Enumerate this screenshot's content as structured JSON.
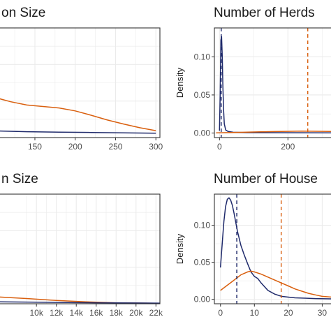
{
  "colors": {
    "series_blue": "#1f2a6b",
    "series_orange": "#d95f0e",
    "grid": "#ebebeb",
    "panel_border": "#333333",
    "axis_text": "#4d4d4d"
  },
  "chart_data": [
    {
      "type": "line",
      "title": "on Size",
      "xlabel": "",
      "ylabel": "",
      "xlim": [
        105,
        305
      ],
      "ylim": [
        0,
        0.03
      ],
      "x_ticks": [
        150,
        200,
        250,
        300
      ],
      "x_tick_labels": [
        "150",
        "200",
        "250",
        "300"
      ],
      "y_ticks": [],
      "y_tick_labels": [],
      "grid": true,
      "series": [
        {
          "x": [
            105,
            120,
            140,
            160,
            180,
            200,
            220,
            240,
            260,
            280,
            300
          ],
          "y": [
            0.0107,
            0.0098,
            0.0089,
            0.0085,
            0.0081,
            0.0073,
            0.0061,
            0.0048,
            0.0037,
            0.0027,
            0.0019
          ],
          "color": "#d95f0e"
        },
        {
          "x": [
            105,
            140,
            180,
            220,
            260,
            300
          ],
          "y": [
            0.0018,
            0.0016,
            0.0015,
            0.0014,
            0.0013,
            0.0012
          ],
          "color": "#1f2a6b"
        }
      ],
      "vlines": []
    },
    {
      "type": "line",
      "title": "Number of Herds",
      "xlabel": "",
      "ylabel": "Density",
      "xlim": [
        -15,
        330
      ],
      "ylim": [
        -0.006,
        0.138
      ],
      "x_ticks": [
        0,
        200
      ],
      "x_tick_labels": [
        "0",
        "200"
      ],
      "y_ticks": [
        0,
        0.05,
        0.1
      ],
      "y_tick_labels": [
        "0.00",
        "0.05",
        "0.10"
      ],
      "grid": true,
      "series": [
        {
          "x": [
            0,
            2,
            4,
            6,
            8,
            10,
            12,
            14,
            18,
            25,
            40,
            80,
            330
          ],
          "y": [
            0.003,
            0.05,
            0.122,
            0.127,
            0.1,
            0.06,
            0.03,
            0.012,
            0.004,
            0.002,
            0.001,
            0.0005,
            0.0002
          ],
          "color": "#1f2a6b"
        },
        {
          "x": [
            -10,
            40,
            80,
            120,
            160,
            200,
            240,
            280,
            330
          ],
          "y": [
            0.0002,
            0.0006,
            0.0011,
            0.0015,
            0.0019,
            0.0022,
            0.0024,
            0.0023,
            0.002
          ],
          "color": "#d95f0e"
        }
      ],
      "vlines": [
        {
          "x": 5,
          "color": "#1f2a6b"
        },
        {
          "x": 258,
          "color": "#d95f0e"
        }
      ]
    },
    {
      "type": "line",
      "title": "n Size",
      "xlabel": "",
      "ylabel": "",
      "xlim": [
        6200,
        22400
      ],
      "ylim": [
        0,
        0.001
      ],
      "x_ticks": [
        10000,
        12000,
        14000,
        16000,
        18000,
        20000,
        22000
      ],
      "x_tick_labels": [
        "10k",
        "12k",
        "14k",
        "16k",
        "18k",
        "20k",
        "22k"
      ],
      "y_ticks": [],
      "y_tick_labels": [],
      "grid": true,
      "series": [
        {
          "x": [
            6200,
            9000,
            12000,
            15000,
            18000,
            22400
          ],
          "y": [
            6.2e-05,
            4.8e-05,
            3e-05,
            1.7e-05,
            9e-06,
            4e-06
          ],
          "color": "#d95f0e"
        },
        {
          "x": [
            6200,
            10000,
            14000,
            16000,
            20000,
            22400
          ],
          "y": [
            1.8e-05,
            1.4e-05,
            1e-05,
            9e-06,
            7e-06,
            6e-06
          ],
          "color": "#1f2a6b"
        }
      ],
      "vlines": []
    },
    {
      "type": "line",
      "title": "Number of House",
      "xlabel": "",
      "ylabel": "Density",
      "xlim": [
        -1.8,
        33
      ],
      "ylim": [
        -0.006,
        0.142
      ],
      "x_ticks": [
        0,
        10,
        20,
        30
      ],
      "x_tick_labels": [
        "0",
        "10",
        "20",
        "30"
      ],
      "y_ticks": [
        0,
        0.05,
        0.1
      ],
      "y_tick_labels": [
        "0.00",
        "0.05",
        "0.10"
      ],
      "grid": true,
      "series": [
        {
          "x": [
            0,
            0.5,
            1,
            1.5,
            2,
            2.5,
            3,
            3.5,
            4,
            5,
            6,
            7,
            8,
            9,
            10,
            11,
            12,
            13,
            14,
            16,
            18,
            20,
            22,
            25,
            28,
            33
          ],
          "y": [
            0.043,
            0.075,
            0.105,
            0.125,
            0.135,
            0.137,
            0.134,
            0.127,
            0.116,
            0.092,
            0.073,
            0.06,
            0.048,
            0.037,
            0.031,
            0.028,
            0.022,
            0.017,
            0.012,
            0.007,
            0.004,
            0.003,
            0.002,
            0.0015,
            0.001,
            0.0005
          ],
          "color": "#1f2a6b"
        },
        {
          "x": [
            0,
            2,
            4,
            6,
            8,
            9,
            10,
            12,
            14,
            16,
            18,
            20,
            22,
            24,
            26,
            28,
            30,
            33
          ],
          "y": [
            0.012,
            0.019,
            0.026,
            0.033,
            0.037,
            0.038,
            0.037,
            0.034,
            0.03,
            0.026,
            0.022,
            0.018,
            0.014,
            0.011,
            0.008,
            0.006,
            0.004,
            0.003
          ],
          "color": "#d95f0e"
        }
      ],
      "vlines": [
        {
          "x": 4.8,
          "color": "#1f2a6b"
        },
        {
          "x": 17.9,
          "color": "#d95f0e"
        }
      ]
    }
  ]
}
